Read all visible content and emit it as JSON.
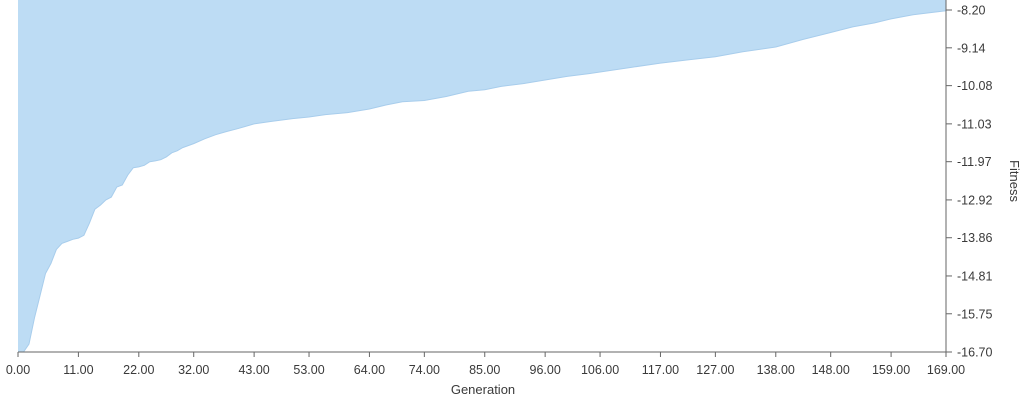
{
  "chart_data": {
    "type": "area",
    "title": "",
    "xlabel": "Generation",
    "ylabel": "Fitness",
    "xlim": [
      0,
      169
    ],
    "ylim": [
      -16.7,
      -8.2
    ],
    "y_axis_side": "right",
    "grid": false,
    "legend": "none",
    "fill_color": "#bddcf4",
    "line_color": "#a8cdec",
    "x_tick_labels": [
      "0.00",
      "11.00",
      "22.00",
      "32.00",
      "43.00",
      "53.00",
      "64.00",
      "74.00",
      "85.00",
      "96.00",
      "106.00",
      "117.00",
      "127.00",
      "138.00",
      "148.00",
      "159.00",
      "169.00"
    ],
    "x_tick_values": [
      0,
      11,
      22,
      32,
      43,
      53,
      64,
      74,
      85,
      96,
      106,
      117,
      127,
      138,
      148,
      159,
      169
    ],
    "y_tick_labels": [
      "-8.20",
      "-9.14",
      "-10.08",
      "-11.03",
      "-11.97",
      "-12.92",
      "-13.86",
      "-14.81",
      "-15.75",
      "-16.70"
    ],
    "y_tick_values": [
      -8.2,
      -9.14,
      -10.08,
      -11.03,
      -11.97,
      -12.92,
      -13.86,
      -14.81,
      -15.75,
      -16.7
    ],
    "series": [
      {
        "x": [
          0,
          1,
          2,
          3,
          4,
          5,
          6,
          7,
          8,
          9,
          10,
          11,
          12,
          13,
          14,
          15,
          16,
          17,
          18,
          19,
          20,
          21,
          22,
          23,
          24,
          25,
          26,
          27,
          28,
          29,
          30,
          32,
          34,
          36,
          38,
          40,
          43,
          46,
          50,
          53,
          56,
          60,
          64,
          67,
          70,
          74,
          78,
          82,
          85,
          88,
          92,
          96,
          100,
          104,
          108,
          112,
          117,
          122,
          127,
          132,
          138,
          143,
          148,
          152,
          156,
          159,
          163,
          166,
          169
        ],
        "y": [
          -16.7,
          -16.7,
          -16.5,
          -15.85,
          -15.3,
          -14.75,
          -14.5,
          -14.15,
          -14.0,
          -13.95,
          -13.9,
          -13.87,
          -13.8,
          -13.5,
          -13.15,
          -13.05,
          -12.92,
          -12.85,
          -12.6,
          -12.55,
          -12.3,
          -12.12,
          -12.1,
          -12.06,
          -11.97,
          -11.95,
          -11.92,
          -11.85,
          -11.75,
          -11.7,
          -11.62,
          -11.52,
          -11.4,
          -11.3,
          -11.22,
          -11.15,
          -11.03,
          -10.97,
          -10.9,
          -10.86,
          -10.8,
          -10.75,
          -10.66,
          -10.56,
          -10.48,
          -10.45,
          -10.35,
          -10.22,
          -10.18,
          -10.1,
          -10.03,
          -9.94,
          -9.85,
          -9.78,
          -9.7,
          -9.62,
          -9.52,
          -9.44,
          -9.36,
          -9.24,
          -9.12,
          -8.93,
          -8.76,
          -8.62,
          -8.52,
          -8.42,
          -8.32,
          -8.27,
          -8.22
        ]
      }
    ]
  }
}
